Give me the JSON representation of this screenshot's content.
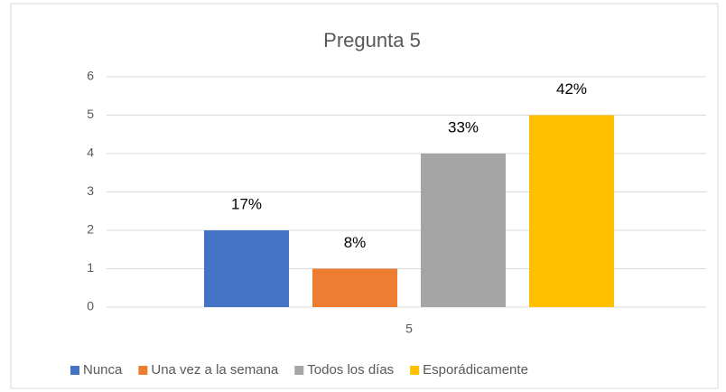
{
  "chart_data": {
    "type": "bar",
    "title": "Pregunta 5",
    "categories": [
      "5"
    ],
    "series": [
      {
        "name": "Nunca",
        "color": "#4472c4",
        "values": [
          2
        ],
        "value_labels": [
          "17%"
        ]
      },
      {
        "name": "Una vez a la semana",
        "color": "#ed7d31",
        "values": [
          1
        ],
        "value_labels": [
          "8%"
        ]
      },
      {
        "name": "Todos los días",
        "color": "#a5a5a5",
        "values": [
          4
        ],
        "value_labels": [
          "33%"
        ]
      },
      {
        "name": "Esporádicamente",
        "color": "#ffc000",
        "values": [
          5
        ],
        "value_labels": [
          "42%"
        ]
      }
    ],
    "ylim": [
      0,
      6
    ],
    "yticks": [
      0,
      1,
      2,
      3,
      4,
      5,
      6
    ],
    "grid": true,
    "legend": "bottom"
  }
}
